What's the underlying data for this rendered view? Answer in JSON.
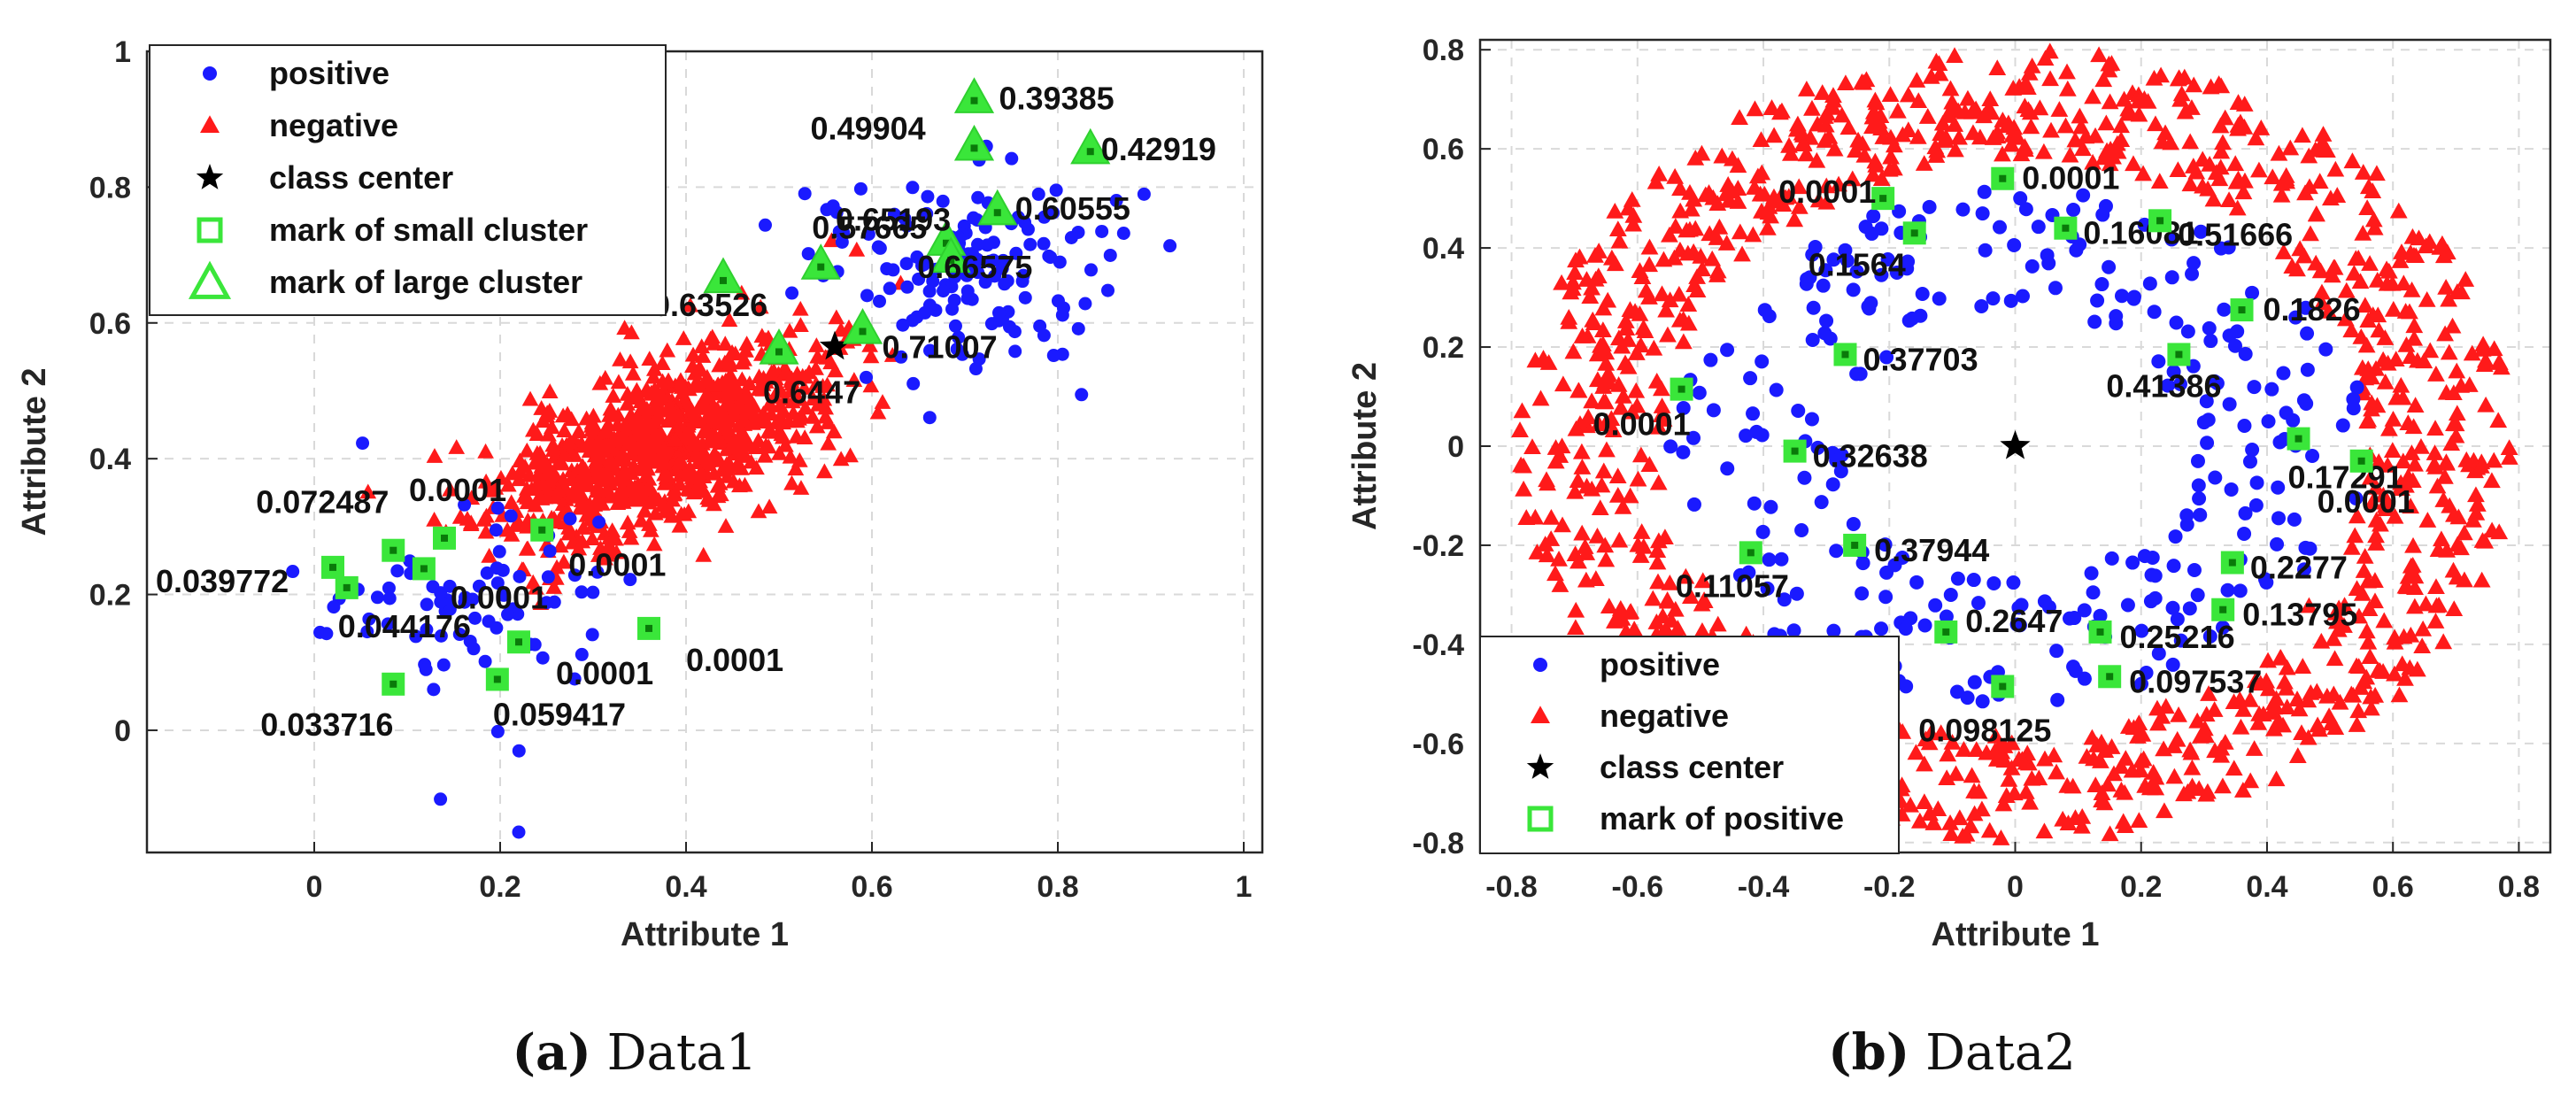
{
  "colors": {
    "positive": "#1a1aff",
    "negative": "#ff1a1a",
    "center": "#000000",
    "mark": "#3ae63a",
    "mark_inner": "#0a7a0a"
  },
  "chart_data": [
    {
      "type": "scatter",
      "id": "a",
      "caption_letter": "(a)",
      "caption_text": " Data1",
      "xlabel": "Attribute 1",
      "ylabel": "Attribute 2",
      "xlim": [
        -0.18,
        1.02
      ],
      "ylim": [
        -0.18,
        1.0
      ],
      "xticks": [
        0,
        0.2,
        0.4,
        0.6,
        0.8,
        1
      ],
      "yticks": [
        0,
        0.2,
        0.4,
        0.6,
        0.8,
        1
      ],
      "xtick_labels": [
        "0",
        "0.2",
        "0.4",
        "0.6",
        "0.8",
        "1"
      ],
      "ytick_labels": [
        "0",
        "0.2",
        "0.4",
        "0.6",
        "0.8",
        "1"
      ],
      "grid": true,
      "legend_position": "top-left",
      "legend": [
        {
          "label": "positive",
          "marker": "dot"
        },
        {
          "label": "negative",
          "marker": "triangle"
        },
        {
          "label": "class center",
          "marker": "star"
        },
        {
          "label": "mark of small cluster",
          "marker": "square"
        },
        {
          "label": "mark of large cluster",
          "marker": "big-triangle"
        }
      ],
      "generator": {
        "negative_cluster": {
          "n": 900,
          "mean": [
            0.37,
            0.42
          ],
          "sd": [
            0.09,
            0.075
          ],
          "rho": 0.6
        },
        "positive_upper": {
          "n": 150,
          "mean": [
            0.7,
            0.69
          ],
          "sd": [
            0.08,
            0.07
          ]
        },
        "positive_lower": {
          "n": 80,
          "mean": [
            0.15,
            0.17
          ],
          "sd": [
            0.09,
            0.09
          ]
        }
      },
      "class_center": [
        0.56,
        0.565
      ],
      "small_cluster_marks": [
        {
          "x": 0.02,
          "y": 0.24,
          "label": "0.039772"
        },
        {
          "x": 0.035,
          "y": 0.21,
          "label": "0.044176"
        },
        {
          "x": 0.085,
          "y": 0.265,
          "label": "0.072487"
        },
        {
          "x": 0.118,
          "y": 0.238,
          "label": "0.0001"
        },
        {
          "x": 0.14,
          "y": 0.283,
          "label": "0.0001"
        },
        {
          "x": 0.245,
          "y": 0.295,
          "label": "0.0001"
        },
        {
          "x": 0.22,
          "y": 0.13,
          "label": "0.0001"
        },
        {
          "x": 0.36,
          "y": 0.15,
          "label": "0.0001"
        },
        {
          "x": 0.085,
          "y": 0.068,
          "label": "0.033716"
        },
        {
          "x": 0.197,
          "y": 0.075,
          "label": "0.059417"
        }
      ],
      "large_cluster_marks": [
        {
          "x": 0.44,
          "y": 0.665,
          "label": "0.63526"
        },
        {
          "x": 0.5,
          "y": 0.56,
          "label": "0.6447"
        },
        {
          "x": 0.545,
          "y": 0.685,
          "label": "0.57665"
        },
        {
          "x": 0.59,
          "y": 0.59,
          "label": "0.71007"
        },
        {
          "x": 0.68,
          "y": 0.72,
          "label": "0.65193"
        },
        {
          "x": 0.685,
          "y": 0.695,
          "label": "0.66575"
        },
        {
          "x": 0.71,
          "y": 0.86,
          "label": "0.49904"
        },
        {
          "x": 0.71,
          "y": 0.93,
          "label": "0.39385"
        },
        {
          "x": 0.735,
          "y": 0.765,
          "label": "0.60555"
        },
        {
          "x": 0.835,
          "y": 0.855,
          "label": "0.42919"
        }
      ]
    },
    {
      "type": "scatter",
      "id": "b",
      "caption_letter": "(b)",
      "caption_text": " Data2",
      "xlabel": "Attribute 1",
      "ylabel": "Attribute 2",
      "xlim": [
        -0.85,
        0.85
      ],
      "ylim": [
        -0.82,
        0.82
      ],
      "xticks": [
        -0.8,
        -0.6,
        -0.4,
        -0.2,
        0,
        0.2,
        0.4,
        0.6,
        0.8
      ],
      "yticks": [
        -0.8,
        -0.6,
        -0.4,
        -0.2,
        0,
        0.2,
        0.4,
        0.6,
        0.8
      ],
      "xtick_labels": [
        "-0.8",
        "-0.6",
        "-0.4",
        "-0.2",
        "0",
        "0.2",
        "0.4",
        "0.6",
        "0.8"
      ],
      "ytick_labels": [
        "-0.8",
        "-0.6",
        "-0.4",
        "-0.2",
        "0",
        "0.2",
        "0.4",
        "0.6",
        "0.8"
      ],
      "grid": true,
      "legend_position": "bottom-left",
      "legend": [
        {
          "label": "positive",
          "marker": "dot"
        },
        {
          "label": "negative",
          "marker": "triangle"
        },
        {
          "label": "class center",
          "marker": "star"
        },
        {
          "label": "mark of positive",
          "marker": "square"
        }
      ],
      "generator": {
        "negative_ring": {
          "n": 1100,
          "rx_min": 0.56,
          "rx_max": 0.79,
          "ry_min": 0.58,
          "ry_max": 0.8
        },
        "positive_ring": {
          "n": 290,
          "rx_min": 0.27,
          "rx_max": 0.56,
          "ry_min": 0.27,
          "ry_max": 0.52
        }
      },
      "class_center": [
        0,
        0
      ],
      "positive_marks": [
        {
          "x": -0.21,
          "y": 0.5,
          "label": "0.0001"
        },
        {
          "x": -0.02,
          "y": 0.54,
          "label": "0.0001"
        },
        {
          "x": -0.16,
          "y": 0.43,
          "label": "0.1564"
        },
        {
          "x": 0.08,
          "y": 0.44,
          "label": "0.16081"
        },
        {
          "x": 0.23,
          "y": 0.455,
          "label": "0.51666"
        },
        {
          "x": 0.36,
          "y": 0.275,
          "label": "0.1826"
        },
        {
          "x": 0.26,
          "y": 0.185,
          "label": "0.41386"
        },
        {
          "x": -0.27,
          "y": 0.185,
          "label": "0.37703"
        },
        {
          "x": -0.53,
          "y": 0.115,
          "label": "0.0001"
        },
        {
          "x": -0.35,
          "y": -0.01,
          "label": "0.32638"
        },
        {
          "x": 0.45,
          "y": 0.015,
          "label": "0.17291"
        },
        {
          "x": 0.55,
          "y": -0.03,
          "label": "0.0001"
        },
        {
          "x": -0.42,
          "y": -0.215,
          "label": "0.11057"
        },
        {
          "x": -0.255,
          "y": -0.2,
          "label": "0.37944"
        },
        {
          "x": 0.345,
          "y": -0.235,
          "label": "0.2277"
        },
        {
          "x": 0.33,
          "y": -0.33,
          "label": "0.13795"
        },
        {
          "x": -0.11,
          "y": -0.375,
          "label": "0.2647"
        },
        {
          "x": 0.135,
          "y": -0.375,
          "label": "0.25216"
        },
        {
          "x": 0.15,
          "y": -0.465,
          "label": "0.097537"
        },
        {
          "x": -0.02,
          "y": -0.485,
          "label": "0.098125"
        }
      ]
    }
  ]
}
